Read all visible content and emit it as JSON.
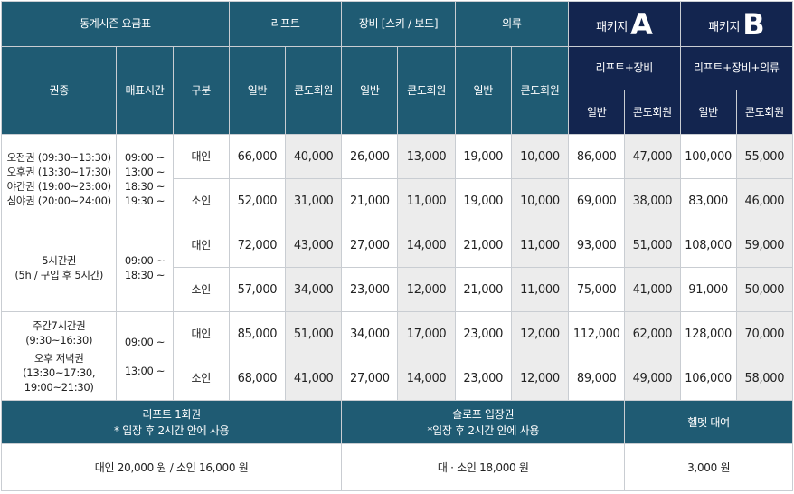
{
  "header": {
    "title": "동계시즌 요금표",
    "lift": "리프트",
    "equip": "장비 [스키 / 보드]",
    "cloth": "의류",
    "pkg_a_prefix": "패키지",
    "pkg_a_letter": "A",
    "pkg_b_prefix": "패키지",
    "pkg_b_letter": "B",
    "pkg_a_desc": "리프트+장비",
    "pkg_b_desc": "리프트+장비+의류",
    "col_ticket": "권종",
    "col_time": "매표시간",
    "col_type": "구분",
    "general": "일반",
    "condo": "콘도회원"
  },
  "groups": [
    {
      "ticket_lines": [
        "오전권 (09:30~13:30)",
        "오후권 (13:30~17:30)",
        "야간권 (19:00~23:00)",
        "심야권 (20:00~24:00)"
      ],
      "time_lines": [
        "09:00 ~",
        "13:00 ~",
        "18:30 ~",
        "19:30 ~"
      ],
      "rows": [
        {
          "type": "대인",
          "values": [
            "66,000",
            "40,000",
            "26,000",
            "13,000",
            "19,000",
            "10,000",
            "86,000",
            "47,000",
            "100,000",
            "55,000"
          ]
        },
        {
          "type": "소인",
          "values": [
            "52,000",
            "31,000",
            "21,000",
            "11,000",
            "19,000",
            "10,000",
            "69,000",
            "38,000",
            "83,000",
            "46,000"
          ]
        }
      ]
    },
    {
      "ticket_lines": [
        "5시간권",
        "(5h / 구입 후 5시간)"
      ],
      "time_lines": [
        "09:00 ~",
        "18:30 ~"
      ],
      "rows": [
        {
          "type": "대인",
          "values": [
            "72,000",
            "43,000",
            "27,000",
            "14,000",
            "21,000",
            "11,000",
            "93,000",
            "51,000",
            "108,000",
            "59,000"
          ]
        },
        {
          "type": "소인",
          "values": [
            "57,000",
            "34,000",
            "23,000",
            "12,000",
            "21,000",
            "11,000",
            "75,000",
            "41,000",
            "91,000",
            "50,000"
          ]
        }
      ]
    },
    {
      "ticket_lines": [
        "주간7시간권",
        "(9:30~16:30)",
        "오후 저녁권",
        "(13:30~17:30,",
        "19:00~21:30)"
      ],
      "time_lines": [
        "09:00 ~",
        "13:00 ~"
      ],
      "rows": [
        {
          "type": "대인",
          "values": [
            "85,000",
            "51,000",
            "34,000",
            "17,000",
            "23,000",
            "12,000",
            "112,000",
            "62,000",
            "128,000",
            "70,000"
          ]
        },
        {
          "type": "소인",
          "values": [
            "68,000",
            "41,000",
            "27,000",
            "14,000",
            "23,000",
            "12,000",
            "89,000",
            "49,000",
            "106,000",
            "58,000"
          ]
        }
      ]
    }
  ],
  "footer": {
    "lift_once_title": "리프트 1회권",
    "lift_once_note": "* 입장 후 2시간 안에 사용",
    "lift_once_price": "대인 20,000 원 / 소인 16,000 원",
    "slope_title": "슬로프 입장권",
    "slope_note": "*입장 후 2시간 안에 사용",
    "slope_price": "대 · 소인 18,000 원",
    "helmet_title": "헬멧 대여",
    "helmet_price": "3,000 원"
  },
  "colors": {
    "header_teal": "#1f5b73",
    "package_navy": "#13254f",
    "condo_gray": "#ececec"
  }
}
